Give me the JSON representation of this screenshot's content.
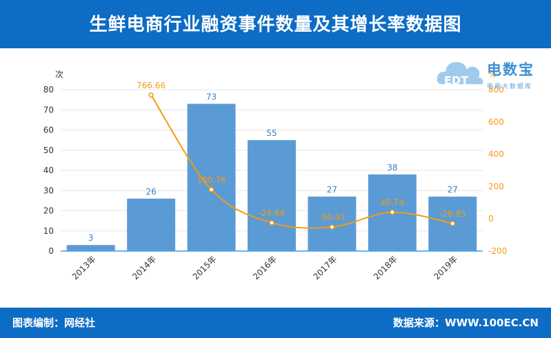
{
  "header": {
    "title": "生鲜电商行业融资事件数量及其增长率数据图"
  },
  "logo": {
    "name": "电数宝",
    "tagline": "电商大数据库",
    "mark": "EDT"
  },
  "footer": {
    "left": "图表编制：网经社",
    "right": "数据来源：WWW.100EC.CN"
  },
  "chart_data": {
    "type": "bar+line",
    "categories": [
      "2013年",
      "2014年",
      "2015年",
      "2016年",
      "2017年",
      "2018年",
      "2019年"
    ],
    "series": [
      {
        "type": "bar",
        "axis": "left",
        "values": [
          3,
          26,
          73,
          55,
          27,
          38,
          27
        ],
        "color": "#5b9bd5"
      },
      {
        "type": "line",
        "axis": "right",
        "values": [
          null,
          766.66,
          180.76,
          -24.66,
          -50.91,
          40.74,
          -28.95
        ],
        "color": "#f39c12"
      }
    ],
    "y_left": {
      "label": "次",
      "ticks": [
        0,
        10,
        20,
        30,
        40,
        50,
        60,
        70,
        80
      ],
      "lim": [
        0,
        80
      ]
    },
    "y_right": {
      "label": "%",
      "ticks": [
        -200,
        0,
        200,
        400,
        600,
        800
      ],
      "lim": [
        -200,
        800
      ]
    },
    "grid": true
  }
}
